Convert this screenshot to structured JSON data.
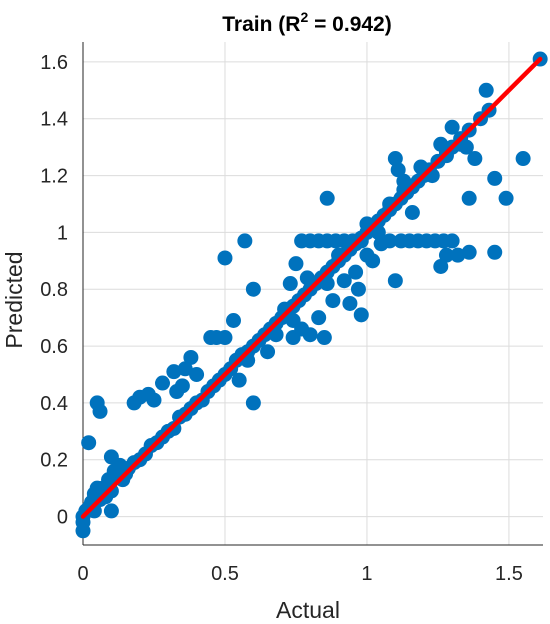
{
  "chart_data": {
    "type": "scatter",
    "title": {
      "prefix": "Train (R",
      "superscript": "2",
      "suffix": " = 0.942)"
    },
    "xlabel": "Actual",
    "ylabel": "Predicted",
    "xlim": [
      0,
      1.62
    ],
    "ylim": [
      -0.1,
      1.67
    ],
    "xticks": [
      0,
      0.5,
      1,
      1.5
    ],
    "xtick_labels": [
      "0",
      "0.5",
      "1",
      "1.5"
    ],
    "yticks": [
      0,
      0.2,
      0.4,
      0.6,
      0.8,
      1,
      1.2,
      1.4,
      1.6
    ],
    "ytick_labels": [
      "0",
      "0.2",
      "0.4",
      "0.6",
      "0.8",
      "1",
      "1.2",
      "1.4",
      "1.6"
    ],
    "grid": true,
    "marker_color": "#0072BD",
    "line_color": "#FF0000",
    "fit_line": {
      "x": [
        0,
        1.61
      ],
      "y": [
        0,
        1.61
      ]
    },
    "points": [
      [
        0,
        0
      ],
      [
        0,
        -0.02
      ],
      [
        0,
        -0.05
      ],
      [
        0.01,
        0.02
      ],
      [
        0.02,
        0.03
      ],
      [
        0.03,
        0.05
      ],
      [
        0.04,
        0.08
      ],
      [
        0.05,
        0.1
      ],
      [
        0.06,
        0.06
      ],
      [
        0.07,
        0.1
      ],
      [
        0.08,
        0.07
      ],
      [
        0.09,
        0.13
      ],
      [
        0.1,
        0.09
      ],
      [
        0.11,
        0.16
      ],
      [
        0.12,
        0.14
      ],
      [
        0.13,
        0.18
      ],
      [
        0.14,
        0.13
      ],
      [
        0.15,
        0.15
      ],
      [
        0.16,
        0.17
      ],
      [
        0.18,
        0.19
      ],
      [
        0.2,
        0.2
      ],
      [
        0.22,
        0.22
      ],
      [
        0.24,
        0.25
      ],
      [
        0.26,
        0.26
      ],
      [
        0.28,
        0.28
      ],
      [
        0.3,
        0.3
      ],
      [
        0.32,
        0.31
      ],
      [
        0.34,
        0.35
      ],
      [
        0.36,
        0.36
      ],
      [
        0.38,
        0.38
      ],
      [
        0.4,
        0.4
      ],
      [
        0.42,
        0.41
      ],
      [
        0.44,
        0.44
      ],
      [
        0.46,
        0.46
      ],
      [
        0.48,
        0.48
      ],
      [
        0.5,
        0.5
      ],
      [
        0.52,
        0.52
      ],
      [
        0.54,
        0.55
      ],
      [
        0.56,
        0.57
      ],
      [
        0.58,
        0.58
      ],
      [
        0.6,
        0.6
      ],
      [
        0.62,
        0.62
      ],
      [
        0.64,
        0.64
      ],
      [
        0.66,
        0.66
      ],
      [
        0.68,
        0.68
      ],
      [
        0.7,
        0.7
      ],
      [
        0.72,
        0.72
      ],
      [
        0.74,
        0.74
      ],
      [
        0.76,
        0.76
      ],
      [
        0.78,
        0.78
      ],
      [
        0.8,
        0.8
      ],
      [
        0.82,
        0.82
      ],
      [
        0.84,
        0.84
      ],
      [
        0.86,
        0.86
      ],
      [
        0.88,
        0.88
      ],
      [
        0.9,
        0.9
      ],
      [
        0.92,
        0.92
      ],
      [
        0.94,
        0.94
      ],
      [
        0.96,
        0.96
      ],
      [
        0.98,
        0.98
      ],
      [
        1.0,
        1.0
      ],
      [
        1.02,
        1.02
      ],
      [
        1.04,
        1.04
      ],
      [
        1.06,
        1.06
      ],
      [
        1.08,
        1.08
      ],
      [
        1.1,
        1.1
      ],
      [
        1.12,
        1.12
      ],
      [
        1.14,
        1.14
      ],
      [
        1.16,
        1.16
      ],
      [
        1.18,
        1.18
      ],
      [
        1.2,
        1.2
      ],
      [
        1.22,
        1.22
      ],
      [
        1.25,
        1.25
      ],
      [
        1.28,
        1.28
      ],
      [
        1.3,
        1.3
      ],
      [
        1.33,
        1.33
      ],
      [
        1.36,
        1.36
      ],
      [
        1.4,
        1.4
      ],
      [
        1.43,
        1.43
      ],
      [
        1.61,
        1.61
      ],
      [
        0.02,
        0.26
      ],
      [
        0.05,
        0.4
      ],
      [
        0.06,
        0.37
      ],
      [
        0.1,
        0.21
      ],
      [
        0.1,
        0.02
      ],
      [
        0.04,
        0.02
      ],
      [
        0.18,
        0.4
      ],
      [
        0.2,
        0.42
      ],
      [
        0.23,
        0.43
      ],
      [
        0.25,
        0.41
      ],
      [
        0.28,
        0.47
      ],
      [
        0.32,
        0.51
      ],
      [
        0.33,
        0.44
      ],
      [
        0.35,
        0.46
      ],
      [
        0.36,
        0.52
      ],
      [
        0.38,
        0.56
      ],
      [
        0.4,
        0.5
      ],
      [
        0.45,
        0.63
      ],
      [
        0.47,
        0.63
      ],
      [
        0.5,
        0.63
      ],
      [
        0.53,
        0.69
      ],
      [
        0.5,
        0.91
      ],
      [
        0.57,
        0.97
      ],
      [
        0.6,
        0.8
      ],
      [
        0.6,
        0.4
      ],
      [
        0.55,
        0.48
      ],
      [
        0.58,
        0.55
      ],
      [
        0.65,
        0.58
      ],
      [
        0.68,
        0.64
      ],
      [
        0.74,
        0.69
      ],
      [
        0.77,
        0.97
      ],
      [
        0.8,
        0.97
      ],
      [
        0.83,
        0.97
      ],
      [
        0.86,
        0.97
      ],
      [
        0.89,
        0.97
      ],
      [
        0.92,
        0.97
      ],
      [
        0.95,
        0.97
      ],
      [
        0.98,
        0.97
      ],
      [
        0.71,
        0.73
      ],
      [
        0.73,
        0.82
      ],
      [
        0.75,
        0.89
      ],
      [
        0.79,
        0.84
      ],
      [
        0.74,
        0.63
      ],
      [
        0.77,
        0.66
      ],
      [
        0.8,
        0.64
      ],
      [
        0.83,
        0.7
      ],
      [
        0.85,
        0.63
      ],
      [
        0.86,
        1.12
      ],
      [
        0.86,
        0.82
      ],
      [
        0.88,
        0.76
      ],
      [
        0.9,
        0.92
      ],
      [
        0.92,
        0.83
      ],
      [
        0.94,
        0.75
      ],
      [
        0.96,
        0.86
      ],
      [
        0.97,
        0.8
      ],
      [
        0.98,
        0.71
      ],
      [
        1.0,
        0.92
      ],
      [
        1.02,
        0.9
      ],
      [
        1.05,
        0.96
      ],
      [
        1.08,
        0.97
      ],
      [
        1.1,
        0.83
      ],
      [
        1.12,
        0.97
      ],
      [
        1.15,
        0.97
      ],
      [
        1.18,
        0.97
      ],
      [
        1.21,
        0.97
      ],
      [
        1.24,
        0.97
      ],
      [
        1.27,
        0.97
      ],
      [
        1.3,
        0.97
      ],
      [
        1.26,
        0.88
      ],
      [
        1.28,
        0.92
      ],
      [
        1.32,
        0.92
      ],
      [
        1.36,
        0.93
      ],
      [
        1.45,
        0.93
      ],
      [
        1.08,
        1.1
      ],
      [
        1.11,
        1.22
      ],
      [
        1.13,
        1.15
      ],
      [
        1.16,
        1.07
      ],
      [
        1.19,
        1.23
      ],
      [
        1.23,
        1.2
      ],
      [
        1.26,
        1.31
      ],
      [
        1.28,
        1.27
      ],
      [
        1.3,
        1.37
      ],
      [
        1.33,
        1.31
      ],
      [
        1.35,
        1.3
      ],
      [
        1.38,
        1.26
      ],
      [
        1.36,
        1.12
      ],
      [
        1.42,
        1.5
      ],
      [
        1.45,
        1.19
      ],
      [
        1.49,
        1.12
      ],
      [
        1.55,
        1.26
      ],
      [
        1.0,
        1.03
      ],
      [
        1.04,
        1.0
      ],
      [
        1.1,
        1.26
      ],
      [
        1.13,
        1.18
      ]
    ]
  }
}
